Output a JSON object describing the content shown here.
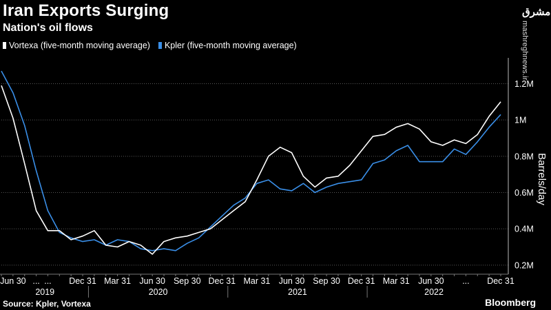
{
  "header": {
    "title": "Iran Exports Surging",
    "subtitle": "Nation's oil flows"
  },
  "legend": [
    {
      "label": "Vortexa (five-month moving average)",
      "color": "#ffffff"
    },
    {
      "label": "Kpler (five-month moving average)",
      "color": "#3a8fe8"
    }
  ],
  "footer": {
    "source": "Source: Kpler, Vortexa",
    "brand": "Bloomberg"
  },
  "watermark": {
    "logo": "مشرق",
    "site": "mashreghnews.ir"
  },
  "chart_data": {
    "type": "line",
    "title": "Iran Exports Surging",
    "subtitle": "Nation's oil flows",
    "xlabel": "",
    "ylabel": "Barrels/day",
    "ylim": [
      0.15,
      1.35
    ],
    "yticks": [
      0.2,
      0.4,
      0.6,
      0.8,
      1.0,
      1.2
    ],
    "ytick_labels": [
      "0.2M",
      "0.4M",
      "0.6M",
      "0.8M",
      "1M",
      "1.2M"
    ],
    "x_months_start": "2019-05",
    "x_tick_labels": [
      {
        "month": 1,
        "label": "Jun 30"
      },
      {
        "month": 3,
        "label": "..."
      },
      {
        "month": 4,
        "label": "..."
      },
      {
        "month": 7,
        "label": "Dec 31"
      },
      {
        "month": 10,
        "label": "Mar 31"
      },
      {
        "month": 13,
        "label": "Jun 30"
      },
      {
        "month": 16,
        "label": "Sep 30"
      },
      {
        "month": 19,
        "label": "Dec 31"
      },
      {
        "month": 22,
        "label": "Mar 31"
      },
      {
        "month": 25,
        "label": "Jun 30"
      },
      {
        "month": 28,
        "label": "Sep 30"
      },
      {
        "month": 31,
        "label": "Dec 31"
      },
      {
        "month": 34,
        "label": "Mar 31"
      },
      {
        "month": 37,
        "label": "Jun 30"
      },
      {
        "month": 40,
        "label": "..."
      },
      {
        "month": 43,
        "label": "Dec 31"
      }
    ],
    "years": [
      {
        "label": "2019",
        "from": 0,
        "to": 7.5
      },
      {
        "label": "2020",
        "from": 7.5,
        "to": 19.5
      },
      {
        "label": "2021",
        "from": 19.5,
        "to": 31.5
      },
      {
        "label": "2022",
        "from": 31.5,
        "to": 43.5
      }
    ],
    "series": [
      {
        "name": "Vortexa (five-month moving average)",
        "color": "#ffffff",
        "values": [
          1.19,
          1.01,
          0.76,
          0.5,
          0.39,
          0.39,
          0.34,
          0.36,
          0.39,
          0.31,
          0.3,
          0.33,
          0.31,
          0.26,
          0.33,
          0.35,
          0.36,
          0.38,
          0.4,
          0.45,
          0.5,
          0.55,
          0.67,
          0.8,
          0.85,
          0.82,
          0.69,
          0.63,
          0.68,
          0.69,
          0.75,
          0.83,
          0.91,
          0.92,
          0.96,
          0.98,
          0.95,
          0.88,
          0.86,
          0.89,
          0.87,
          0.92,
          1.02,
          1.1
        ]
      },
      {
        "name": "Kpler (five-month moving average)",
        "color": "#3a8fe8",
        "values": [
          1.27,
          1.15,
          0.97,
          0.72,
          0.5,
          0.38,
          0.35,
          0.33,
          0.34,
          0.31,
          0.34,
          0.33,
          0.29,
          0.28,
          0.29,
          0.28,
          0.32,
          0.35,
          0.41,
          0.47,
          0.53,
          0.57,
          0.65,
          0.67,
          0.62,
          0.61,
          0.65,
          0.6,
          0.63,
          0.65,
          0.66,
          0.67,
          0.76,
          0.78,
          0.83,
          0.86,
          0.77,
          0.77,
          0.77,
          0.84,
          0.81,
          0.88,
          0.96,
          1.03
        ]
      }
    ]
  }
}
